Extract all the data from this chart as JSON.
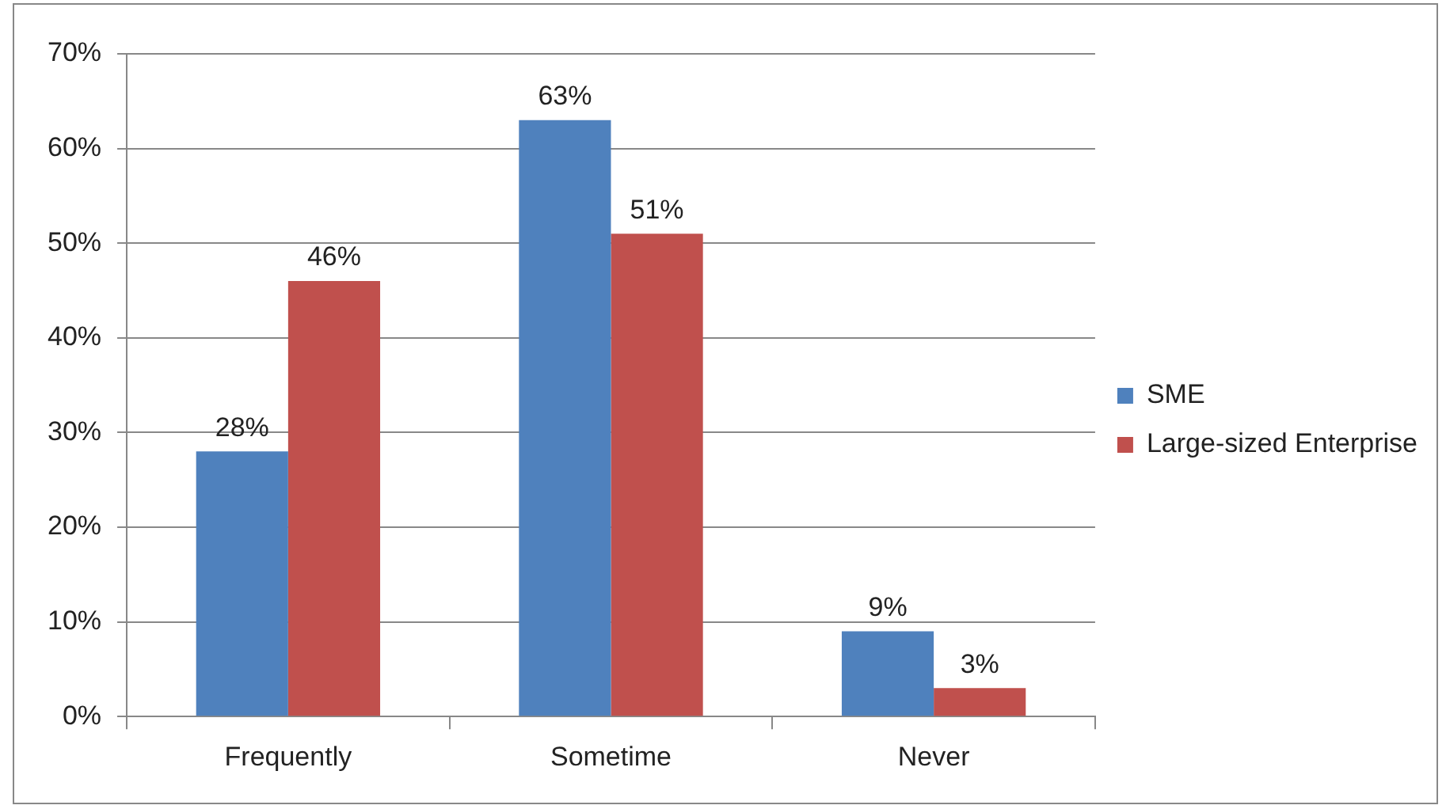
{
  "chart_data": {
    "type": "bar",
    "categories": [
      "Frequently",
      "Sometime",
      "Never"
    ],
    "series": [
      {
        "name": "SME",
        "color": "#4f81bd",
        "values": [
          28,
          63,
          9
        ],
        "value_labels": [
          "28%",
          "63%",
          "9%"
        ]
      },
      {
        "name": "Large-sized Enterprise",
        "color": "#c0504d",
        "values": [
          46,
          51,
          3
        ],
        "value_labels": [
          "46%",
          "51%",
          "3%"
        ]
      }
    ],
    "ylim": [
      0,
      70
    ],
    "yticks": [
      {
        "value": 0,
        "label": "0%"
      },
      {
        "value": 10,
        "label": "10%"
      },
      {
        "value": 20,
        "label": "20%"
      },
      {
        "value": 30,
        "label": "30%"
      },
      {
        "value": 40,
        "label": "40%"
      },
      {
        "value": 50,
        "label": "50%"
      },
      {
        "value": 60,
        "label": "60%"
      },
      {
        "value": 70,
        "label": "70%"
      }
    ],
    "grid": "y",
    "legend": "right"
  }
}
